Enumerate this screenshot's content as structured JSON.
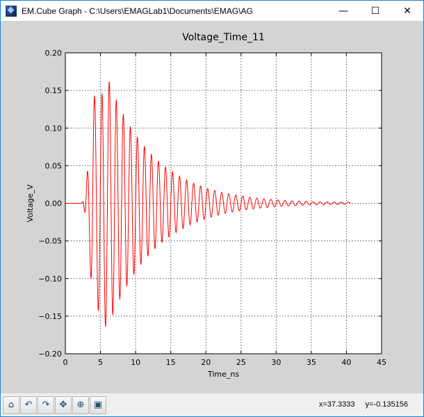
{
  "window": {
    "title": "EM.Cube Graph - C:\\Users\\EMAGLab1\\Documents\\EMAG\\AG",
    "minimize_glyph": "—",
    "maximize_glyph": "☐",
    "close_glyph": "✕"
  },
  "toolbar": {
    "buttons": [
      {
        "name": "home-button",
        "icon": "home-icon",
        "glyph": "⌂"
      },
      {
        "name": "back-button",
        "icon": "back-arrow-icon",
        "glyph": "↶"
      },
      {
        "name": "forward-button",
        "icon": "forward-arrow-icon",
        "glyph": "↷"
      },
      {
        "name": "pan-button",
        "icon": "move-arrows-icon",
        "glyph": "✥"
      },
      {
        "name": "zoom-button",
        "icon": "zoom-rect-icon",
        "glyph": "⊕"
      },
      {
        "name": "save-button",
        "icon": "floppy-disk-icon",
        "glyph": "▣"
      }
    ],
    "x_readout": "x=37.3333",
    "y_readout": "y=-0.135156"
  },
  "chart_data": {
    "type": "line",
    "title": "Voltage_Time_11",
    "xlabel": "Time_ns",
    "ylabel": "Voltage_V",
    "xlim": [
      0,
      45
    ],
    "ylim": [
      -0.2,
      0.2
    ],
    "xticks": [
      "0",
      "5",
      "10",
      "15",
      "20",
      "25",
      "30",
      "35",
      "40",
      "45"
    ],
    "yticks": [
      "0.20",
      "0.15",
      "0.10",
      "0.05",
      "0.00",
      "−0.05",
      "−0.10",
      "−0.15",
      "−0.20"
    ],
    "grid": true,
    "line_color": "#ff0000",
    "series": [
      {
        "extrema": [
          [
            0,
            0
          ],
          [
            2.2,
            0
          ],
          [
            2.5,
            0.002
          ],
          [
            2.8,
            -0.012
          ],
          [
            3.17,
            0.043
          ],
          [
            3.66,
            -0.1
          ],
          [
            4.15,
            0.143
          ],
          [
            4.7,
            -0.143
          ],
          [
            5.22,
            0.146
          ],
          [
            5.72,
            -0.164
          ],
          [
            6.25,
            0.162
          ],
          [
            6.75,
            -0.1485
          ],
          [
            7.25,
            0.1378
          ],
          [
            7.75,
            -0.1279
          ],
          [
            8.25,
            0.1187
          ],
          [
            8.75,
            -0.1102
          ],
          [
            9.25,
            0.1023
          ],
          [
            9.75,
            -0.0949
          ],
          [
            10.25,
            0.0881
          ],
          [
            10.75,
            -0.0817
          ],
          [
            11.25,
            0.0759
          ],
          [
            11.75,
            -0.0704
          ],
          [
            12.25,
            0.0654
          ],
          [
            12.75,
            -0.0607
          ],
          [
            13.25,
            0.0563
          ],
          [
            13.75,
            -0.0522
          ],
          [
            14.25,
            0.0485
          ],
          [
            14.75,
            -0.045
          ],
          [
            15.25,
            0.0418
          ],
          [
            15.75,
            -0.0388
          ],
          [
            16.25,
            0.036
          ],
          [
            16.75,
            -0.0334
          ],
          [
            17.25,
            0.031
          ],
          [
            17.75,
            -0.0288
          ],
          [
            18.25,
            0.0267
          ],
          [
            18.75,
            -0.0248
          ],
          [
            19.25,
            0.023
          ],
          [
            19.75,
            -0.0213
          ],
          [
            20.25,
            0.0198
          ],
          [
            20.75,
            -0.0184
          ],
          [
            21.25,
            0.0171
          ],
          [
            21.75,
            -0.0158
          ],
          [
            22.25,
            0.0147
          ],
          [
            22.75,
            -0.0136
          ],
          [
            23.25,
            0.0127
          ],
          [
            23.75,
            -0.0117
          ],
          [
            24.25,
            0.0109
          ],
          [
            24.75,
            -0.0101
          ],
          [
            25.25,
            0.0094
          ],
          [
            25.75,
            -0.0087
          ],
          [
            26.25,
            0.0081
          ],
          [
            26.75,
            -0.0075
          ],
          [
            27.25,
            0.007
          ],
          [
            27.75,
            -0.0065
          ],
          [
            28.25,
            0.006
          ],
          [
            28.75,
            -0.0056
          ],
          [
            29.25,
            0.0052
          ],
          [
            29.75,
            -0.0048
          ],
          [
            30.25,
            0.0045
          ],
          [
            30.75,
            -0.0041
          ],
          [
            31.25,
            0.0038
          ],
          [
            31.75,
            -0.0036
          ],
          [
            32.25,
            0.0033
          ],
          [
            32.75,
            -0.0031
          ],
          [
            33.25,
            0.0029
          ],
          [
            33.75,
            -0.0026
          ],
          [
            34.25,
            0.0025
          ],
          [
            34.75,
            -0.0023
          ],
          [
            35.25,
            0.0021
          ],
          [
            35.75,
            -0.002
          ],
          [
            36.25,
            0.0019
          ],
          [
            36.75,
            -0.0018
          ],
          [
            37.25,
            0.0018
          ],
          [
            37.75,
            -0.0017
          ],
          [
            38.25,
            0.0017
          ],
          [
            38.75,
            -0.0016
          ],
          [
            39.25,
            0.0016
          ],
          [
            39.75,
            -0.0015
          ],
          [
            40.25,
            0.0015
          ],
          [
            40.6,
            0
          ]
        ]
      }
    ]
  }
}
